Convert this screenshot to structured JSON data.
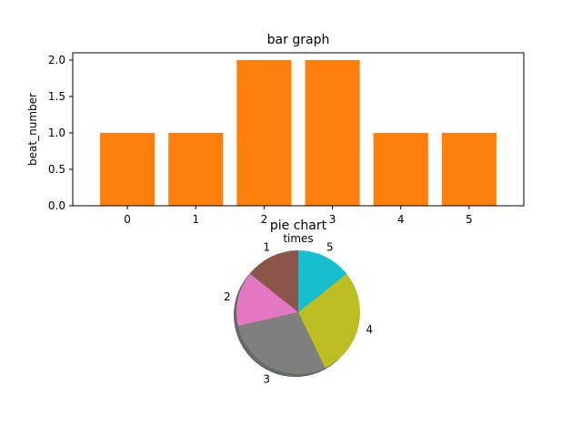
{
  "chart_data": [
    {
      "type": "bar",
      "title": "bar graph",
      "xlabel": "times",
      "ylabel": "beat_number",
      "categories": [
        "0",
        "1",
        "2",
        "3",
        "4",
        "5"
      ],
      "values": [
        1,
        1,
        2,
        2,
        1,
        1
      ],
      "yticks": [
        "0.0",
        "0.5",
        "1.0",
        "1.5",
        "2.0"
      ],
      "ytick_values": [
        0,
        0.5,
        1.0,
        1.5,
        2.0
      ],
      "ylim": [
        0,
        2.1
      ],
      "grid": false,
      "color": "#ff7f0e"
    },
    {
      "type": "pie",
      "title": "pie chart",
      "labels": [
        "1",
        "2",
        "3",
        "4",
        "5"
      ],
      "values": [
        1,
        1,
        2,
        2,
        1
      ],
      "colors": [
        "#8c564b",
        "#e377c2",
        "#7f7f7f",
        "#bcbd22",
        "#17becf"
      ],
      "shadow": true,
      "start_angle_deg": 90
    }
  ]
}
